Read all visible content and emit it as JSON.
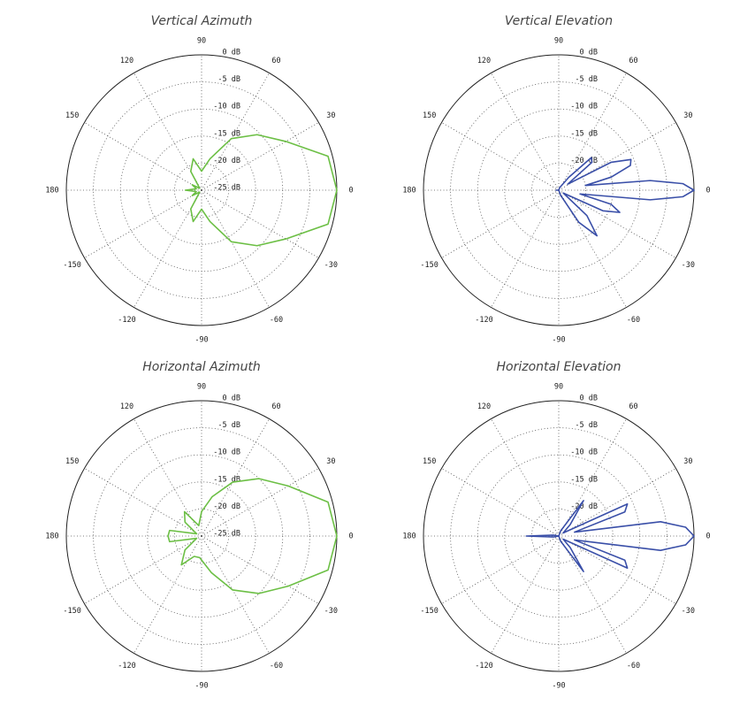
{
  "chart_data": [
    {
      "type": "polar",
      "title": "Vertical Azimuth",
      "color": "#6cbf45",
      "x": [
        0,
        15,
        30,
        45,
        60,
        75,
        90,
        105,
        120,
        135,
        150,
        165,
        180,
        195,
        210,
        225,
        240,
        255,
        270,
        285,
        300,
        315,
        330,
        345
      ],
      "values": [
        0,
        -0.8,
        -7,
        -10.5,
        -14,
        -19,
        -21.5,
        -19,
        -21,
        -24.5,
        -23,
        -24,
        -22,
        -24,
        -23,
        -24.5,
        -21,
        -19,
        -21.5,
        -19,
        -14,
        -10.5,
        -7,
        -0.8
      ],
      "rlim": [
        -25,
        0
      ],
      "rticks": [
        {
          "value": 0,
          "label": "0 dB"
        },
        {
          "value": -5,
          "label": "-5 dB"
        },
        {
          "value": -10,
          "label": "-10 dB"
        },
        {
          "value": -15,
          "label": "-15 dB"
        },
        {
          "value": -20,
          "label": "-20 dB"
        },
        {
          "value": -25,
          "label": "-25 dB"
        }
      ],
      "thetaticks": [
        0,
        30,
        60,
        90,
        120,
        150,
        180,
        -150,
        -120,
        -90,
        -60,
        -30
      ],
      "grid": true
    },
    {
      "type": "polar",
      "title": "Vertical Elevation",
      "color": "#3a4fa8",
      "x": [
        -180,
        -120,
        -70,
        -58,
        -50,
        -42,
        -32,
        -25,
        -20,
        -15,
        -10,
        -6,
        -3,
        0,
        3,
        6,
        10,
        14,
        19,
        23,
        28,
        34,
        40,
        45,
        52,
        70,
        120
      ],
      "values": [
        -24.5,
        -25,
        -24,
        -18,
        -14,
        -18,
        -24,
        -16,
        -13,
        -15,
        -21,
        -8,
        -2,
        0,
        -2,
        -8,
        -20,
        -15,
        -11,
        -10.5,
        -14,
        -23,
        -17,
        -16.5,
        -22,
        -24.5,
        -25
      ],
      "rlim": [
        -25,
        0
      ],
      "rticks": [
        {
          "value": 0,
          "label": "0 dB"
        },
        {
          "value": -5,
          "label": "-5 dB"
        },
        {
          "value": -10,
          "label": "-10 dB"
        },
        {
          "value": -15,
          "label": "-15 dB"
        },
        {
          "value": -20,
          "label": "-20 dB"
        }
      ],
      "thetaticks": [
        0,
        30,
        60,
        90,
        120,
        150,
        180,
        -150,
        -120,
        -90,
        -60,
        -30
      ],
      "grid": true
    },
    {
      "type": "polar",
      "title": "Horizontal Azimuth",
      "color": "#6cbf45",
      "x": [
        0,
        15,
        30,
        45,
        60,
        75,
        90,
        105,
        125,
        140,
        155,
        170,
        180,
        190,
        205,
        220,
        235,
        250,
        265,
        285,
        300,
        315,
        330,
        345
      ],
      "values": [
        0,
        -0.8,
        -6.5,
        -10,
        -13.5,
        -17.5,
        -20.5,
        -23,
        -19.5,
        -21,
        -24,
        -19,
        -18.8,
        -19,
        -24,
        -21,
        -18.5,
        -21,
        -21,
        -18,
        -13.5,
        -10,
        -6.5,
        -0.8
      ],
      "rlim": [
        -25,
        0
      ],
      "rticks": [
        {
          "value": 0,
          "label": "0 dB"
        },
        {
          "value": -5,
          "label": "-5 dB"
        },
        {
          "value": -10,
          "label": "-10 dB"
        },
        {
          "value": -15,
          "label": "-15 dB"
        },
        {
          "value": -20,
          "label": "-20 dB"
        },
        {
          "value": -25,
          "label": "-25 dB"
        }
      ],
      "thetaticks": [
        0,
        30,
        60,
        90,
        120,
        150,
        180,
        -150,
        -120,
        -90,
        -60,
        -30
      ],
      "grid": true
    },
    {
      "type": "polar",
      "title": "Horizontal Elevation",
      "color": "#3a4fa8",
      "x": [
        -180,
        -170,
        -120,
        -70,
        -55,
        -45,
        -35,
        -25,
        -20,
        -14,
        -8,
        -4,
        0,
        4,
        8,
        14,
        20,
        25,
        35,
        45,
        55,
        70,
        120,
        170
      ],
      "values": [
        -19,
        -24,
        -25,
        -24,
        -17,
        -22,
        -24,
        -11,
        -12,
        -22,
        -6,
        -1.5,
        0,
        -1.5,
        -6,
        -22,
        -12,
        -11,
        -24,
        -22,
        -17,
        -24,
        -25,
        -24
      ],
      "rlim": [
        -25,
        0
      ],
      "rticks": [
        {
          "value": 0,
          "label": "0 dB"
        },
        {
          "value": -5,
          "label": "-5 dB"
        },
        {
          "value": -10,
          "label": "-10 dB"
        },
        {
          "value": -15,
          "label": "-15 dB"
        },
        {
          "value": -20,
          "label": "-20 dB"
        }
      ],
      "thetaticks": [
        0,
        30,
        60,
        90,
        120,
        150,
        180,
        -150,
        -120,
        -90,
        -60,
        -30
      ],
      "grid": true
    }
  ]
}
